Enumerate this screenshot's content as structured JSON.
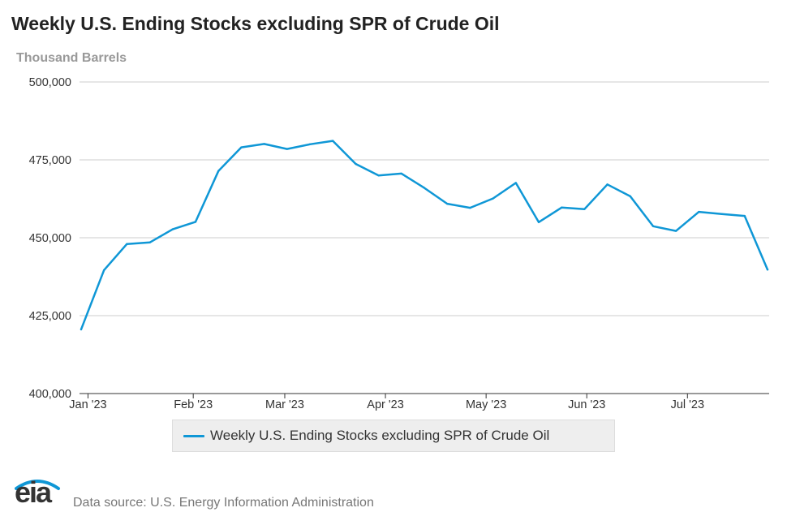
{
  "chart_data": {
    "type": "line",
    "title": "Weekly U.S. Ending Stocks excluding SPR of Crude Oil",
    "ylabel": "Thousand Barrels",
    "xlabel": "",
    "ylim": [
      400000,
      500000
    ],
    "yticks": [
      400000,
      425000,
      450000,
      475000,
      500000
    ],
    "ytick_labels": [
      "400,000",
      "425,000",
      "450,000",
      "475,000",
      "500,000"
    ],
    "xtick_labels": [
      "Jan '23",
      "Feb '23",
      "Mar '23",
      "Apr '23",
      "May '23",
      "Jun '23",
      "Jul '23"
    ],
    "xtick_week_index": [
      0.3,
      4.9,
      8.9,
      13.3,
      17.7,
      22.1,
      26.5
    ],
    "grid": true,
    "legend_placement": "bottom-center",
    "series": [
      {
        "name": "Weekly U.S. Ending Stocks excluding SPR of Crude Oil",
        "color": "#0f97d6",
        "x": [
          "2022-12-30",
          "2023-01-06",
          "2023-01-13",
          "2023-01-20",
          "2023-01-27",
          "2023-02-03",
          "2023-02-10",
          "2023-02-17",
          "2023-02-24",
          "2023-03-03",
          "2023-03-10",
          "2023-03-17",
          "2023-03-24",
          "2023-03-31",
          "2023-04-07",
          "2023-04-14",
          "2023-04-21",
          "2023-04-28",
          "2023-05-05",
          "2023-05-12",
          "2023-05-19",
          "2023-05-26",
          "2023-06-02",
          "2023-06-09",
          "2023-06-16",
          "2023-06-23",
          "2023-06-30",
          "2023-07-07",
          "2023-07-14",
          "2023-07-21",
          "2023-07-28"
        ],
        "values": [
          420600,
          439600,
          448000,
          448500,
          452700,
          455100,
          471400,
          479000,
          480100,
          478500,
          480000,
          481100,
          473700,
          470000,
          470600,
          466000,
          460900,
          459600,
          462600,
          467600,
          455000,
          459700,
          459200,
          467100,
          463300,
          453700,
          452200,
          458300,
          457600,
          457000,
          439800
        ]
      }
    ]
  },
  "legend": {
    "label": "Weekly U.S. Ending Stocks excluding SPR of Crude Oil"
  },
  "footer": {
    "logo_text": "eia",
    "source": "Data source: U.S. Energy Information Administration"
  }
}
